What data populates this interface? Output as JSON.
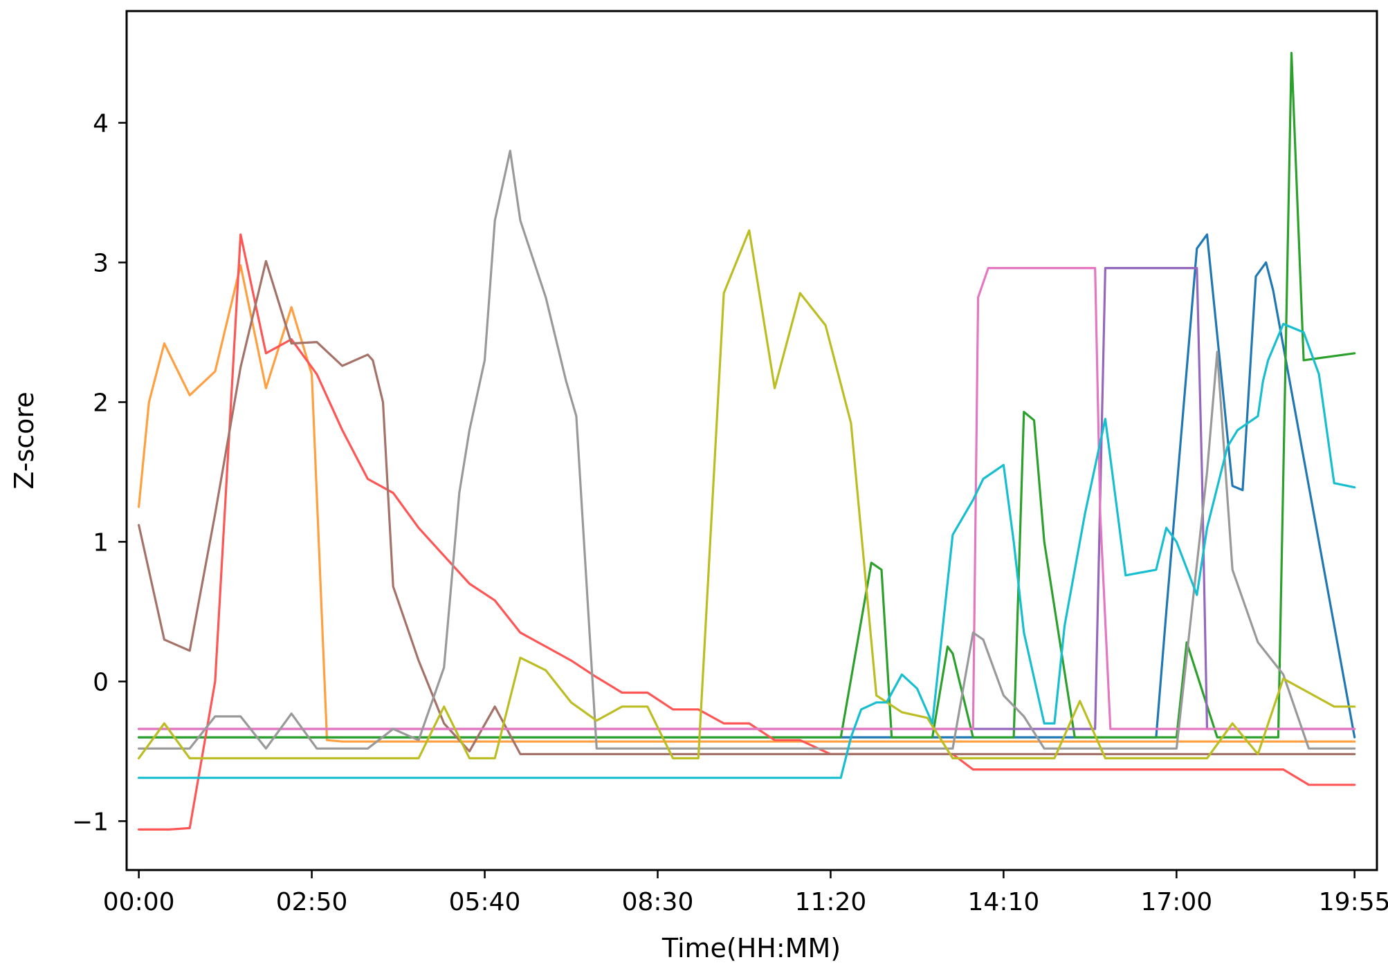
{
  "chart_data": {
    "type": "line",
    "title": "",
    "xlabel": "Time(HH:MM)",
    "ylabel": "Z-score",
    "xlim": [
      -12,
      1217
    ],
    "ylim": [
      -1.35,
      4.8
    ],
    "x_unit": "minutes",
    "grid": false,
    "legend": "none",
    "x_ticks": [
      {
        "value": 0,
        "label": "00:00"
      },
      {
        "value": 170,
        "label": "02:50"
      },
      {
        "value": 340,
        "label": "05:40"
      },
      {
        "value": 510,
        "label": "08:30"
      },
      {
        "value": 680,
        "label": "11:20"
      },
      {
        "value": 850,
        "label": "14:10"
      },
      {
        "value": 1020,
        "label": "17:00"
      },
      {
        "value": 1195,
        "label": "19:55"
      }
    ],
    "y_ticks": [
      {
        "value": -1,
        "label": "−1"
      },
      {
        "value": 0,
        "label": "0"
      },
      {
        "value": 1,
        "label": "1"
      },
      {
        "value": 2,
        "label": "2"
      },
      {
        "value": 3,
        "label": "3"
      },
      {
        "value": 4,
        "label": "4"
      }
    ],
    "series": [
      {
        "color": "#1f77b4",
        "x": [
          0,
          1000,
          1010,
          1040,
          1050,
          1075,
          1085,
          1098,
          1108,
          1115,
          1195
        ],
        "y": [
          -0.4,
          -0.4,
          0.5,
          3.1,
          3.2,
          1.4,
          1.37,
          2.9,
          3.0,
          2.8,
          -0.4
        ]
      },
      {
        "color": "#ff9f40",
        "x": [
          0,
          10,
          25,
          50,
          75,
          100,
          125,
          150,
          170,
          185,
          200,
          1195
        ],
        "y": [
          1.25,
          2.0,
          2.42,
          2.05,
          2.22,
          2.98,
          2.1,
          2.68,
          2.2,
          -0.42,
          -0.43,
          -0.43
        ]
      },
      {
        "color": "#2ca02c",
        "x": [
          0,
          690,
          720,
          730,
          740,
          780,
          795,
          800,
          820,
          840,
          860,
          870,
          880,
          890,
          920,
          950,
          1020,
          1030,
          1060,
          1100,
          1120,
          1133,
          1145,
          1195
        ],
        "y": [
          -0.4,
          -0.4,
          0.85,
          0.8,
          -0.4,
          -0.4,
          0.25,
          0.2,
          -0.4,
          -0.4,
          -0.4,
          1.93,
          1.87,
          1.0,
          -0.4,
          -0.4,
          -0.4,
          0.28,
          -0.4,
          -0.4,
          -0.4,
          4.5,
          2.3,
          2.35
        ]
      },
      {
        "color": "#ff5555",
        "x": [
          0,
          30,
          50,
          75,
          100,
          125,
          150,
          175,
          200,
          225,
          250,
          275,
          300,
          325,
          350,
          375,
          400,
          425,
          450,
          475,
          500,
          525,
          550,
          575,
          600,
          625,
          650,
          680,
          710,
          800,
          820,
          1020,
          1125,
          1150,
          1195
        ],
        "y": [
          -1.06,
          -1.06,
          -1.05,
          0.0,
          3.2,
          2.35,
          2.45,
          2.2,
          1.8,
          1.45,
          1.35,
          1.1,
          0.9,
          0.7,
          0.58,
          0.35,
          0.25,
          0.15,
          0.03,
          -0.08,
          -0.08,
          -0.2,
          -0.2,
          -0.3,
          -0.3,
          -0.42,
          -0.42,
          -0.52,
          -0.52,
          -0.52,
          -0.63,
          -0.63,
          -0.63,
          -0.74,
          -0.74
        ]
      },
      {
        "color": "#9467bd",
        "x": [
          0,
          930,
          940,
          950,
          1040,
          1045,
          1050,
          1060,
          1195
        ],
        "y": [
          -0.34,
          -0.34,
          -0.34,
          2.96,
          2.96,
          1.5,
          -0.34,
          -0.34,
          -0.34
        ]
      },
      {
        "color": "#a47268",
        "x": [
          0,
          25,
          50,
          75,
          100,
          125,
          150,
          175,
          200,
          225,
          230,
          240,
          250,
          275,
          300,
          325,
          350,
          375,
          400,
          425,
          1195
        ],
        "y": [
          1.12,
          0.3,
          0.22,
          1.2,
          2.25,
          3.01,
          2.42,
          2.43,
          2.26,
          2.34,
          2.3,
          2.0,
          0.68,
          0.15,
          -0.3,
          -0.5,
          -0.18,
          -0.52,
          -0.52,
          -0.52,
          -0.52
        ]
      },
      {
        "color": "#e377c2",
        "x": [
          0,
          820,
          825,
          835,
          940,
          945,
          955,
          970,
          1195
        ],
        "y": [
          -0.34,
          -0.34,
          2.75,
          2.96,
          2.96,
          1.2,
          -0.34,
          -0.34,
          -0.34
        ]
      },
      {
        "color": "#999999",
        "x": [
          0,
          50,
          75,
          100,
          125,
          150,
          175,
          200,
          225,
          250,
          275,
          300,
          315,
          325,
          340,
          350,
          365,
          375,
          400,
          410,
          420,
          430,
          450,
          800,
          820,
          830,
          850,
          870,
          890,
          900,
          950,
          1000,
          1020,
          1050,
          1060,
          1075,
          1100,
          1125,
          1150,
          1195
        ],
        "y": [
          -0.48,
          -0.48,
          -0.25,
          -0.25,
          -0.48,
          -0.23,
          -0.48,
          -0.48,
          -0.48,
          -0.34,
          -0.42,
          0.1,
          1.35,
          1.8,
          2.3,
          3.3,
          3.8,
          3.3,
          2.75,
          2.45,
          2.15,
          1.9,
          -0.48,
          -0.48,
          0.35,
          0.3,
          -0.1,
          -0.25,
          -0.48,
          -0.48,
          -0.48,
          -0.48,
          -0.48,
          1.5,
          2.36,
          0.8,
          0.28,
          0.05,
          -0.48,
          -0.48
        ]
      },
      {
        "color": "#bcbd22",
        "x": [
          0,
          25,
          50,
          75,
          100,
          125,
          150,
          175,
          200,
          225,
          250,
          275,
          300,
          325,
          350,
          375,
          400,
          425,
          450,
          475,
          500,
          525,
          550,
          575,
          600,
          625,
          650,
          675,
          700,
          725,
          750,
          775,
          800,
          825,
          850,
          875,
          900,
          925,
          950,
          975,
          1000,
          1025,
          1050,
          1075,
          1100,
          1125,
          1150,
          1175,
          1195
        ],
        "y": [
          -0.55,
          -0.3,
          -0.55,
          -0.55,
          -0.55,
          -0.55,
          -0.55,
          -0.55,
          -0.55,
          -0.55,
          -0.55,
          -0.55,
          -0.18,
          -0.55,
          -0.55,
          0.17,
          0.08,
          -0.15,
          -0.28,
          -0.18,
          -0.18,
          -0.55,
          -0.55,
          2.78,
          3.23,
          2.1,
          2.78,
          2.55,
          1.85,
          -0.1,
          -0.22,
          -0.26,
          -0.55,
          -0.55,
          -0.55,
          -0.55,
          -0.55,
          -0.14,
          -0.55,
          -0.55,
          -0.55,
          -0.55,
          -0.55,
          -0.3,
          -0.52,
          0.02,
          -0.08,
          -0.18,
          -0.18
        ]
      },
      {
        "color": "#17becf",
        "x": [
          0,
          680,
          690,
          700,
          710,
          725,
          735,
          750,
          765,
          780,
          800,
          820,
          830,
          850,
          860,
          870,
          890,
          900,
          910,
          930,
          950,
          970,
          1000,
          1010,
          1020,
          1040,
          1050,
          1070,
          1080,
          1100,
          1105,
          1110,
          1125,
          1145,
          1160,
          1175,
          1195
        ],
        "y": [
          -0.69,
          -0.69,
          -0.69,
          -0.4,
          -0.2,
          -0.15,
          -0.15,
          0.05,
          -0.05,
          -0.3,
          1.05,
          1.3,
          1.45,
          1.55,
          1.0,
          0.35,
          -0.3,
          -0.3,
          0.4,
          1.2,
          1.88,
          0.76,
          0.8,
          1.1,
          1.0,
          0.62,
          1.1,
          1.68,
          1.8,
          1.9,
          2.15,
          2.3,
          2.56,
          2.5,
          2.2,
          1.42,
          1.39
        ]
      }
    ]
  }
}
